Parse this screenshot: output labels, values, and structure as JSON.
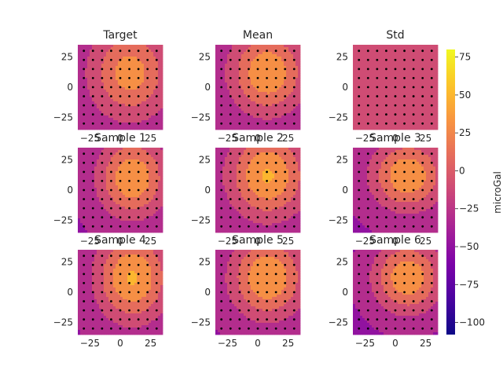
{
  "chart_data": {
    "type": "heatmap",
    "colormap": "plasma",
    "colorbar": {
      "label": "microGal",
      "range": [
        -108,
        80
      ],
      "ticks": [
        -100,
        -75,
        -50,
        -25,
        0,
        25,
        50,
        75
      ]
    },
    "x_ticks": [
      -25,
      0,
      25
    ],
    "y_ticks": [
      -25,
      0,
      25
    ],
    "xlim": [
      -35,
      35
    ],
    "ylim": [
      -35,
      35
    ],
    "contour_levels": [
      -100,
      -80,
      -60,
      -40,
      -20,
      0,
      20,
      40,
      60,
      80
    ],
    "station_grid": {
      "x": [
        -30,
        -22.5,
        -15,
        -7.5,
        0,
        7.5,
        15,
        22.5,
        30
      ],
      "y": [
        -30,
        -22.5,
        -15,
        -7.5,
        0,
        7.5,
        15,
        22.5,
        30
      ]
    },
    "panels": [
      {
        "title": "Target",
        "kind": "field",
        "x0": 8,
        "y0": 12,
        "amp": 65,
        "s": 30,
        "off": -35,
        "sx": 1.0,
        "sy": 1.15
      },
      {
        "title": "Mean",
        "kind": "field",
        "x0": 8,
        "y0": 12,
        "amp": 78,
        "s": 30,
        "off": -40,
        "sx": 1.0,
        "sy": 1.1
      },
      {
        "title": "Std",
        "kind": "flat",
        "value": -20
      },
      {
        "title": "Sample 1",
        "kind": "field",
        "x0": 10,
        "y0": 10,
        "amp": 80,
        "s": 29,
        "off": -42,
        "sx": 0.95,
        "sy": 1.1
      },
      {
        "title": "Sample 2",
        "kind": "field",
        "x0": 8,
        "y0": 12,
        "amp": 82,
        "s": 31,
        "off": -40,
        "sx": 1.0,
        "sy": 1.1
      },
      {
        "title": "Sample 3",
        "kind": "field",
        "x0": 10,
        "y0": 12,
        "amp": 80,
        "s": 28,
        "off": -42,
        "sx": 1.05,
        "sy": 1.0
      },
      {
        "title": "Sample 4",
        "kind": "field",
        "x0": 10,
        "y0": 12,
        "amp": 84,
        "s": 31,
        "off": -42,
        "sx": 0.95,
        "sy": 1.15
      },
      {
        "title": "Sample 5",
        "kind": "field",
        "x0": 8,
        "y0": 12,
        "amp": 82,
        "s": 30,
        "off": -42,
        "sx": 1.0,
        "sy": 1.1
      },
      {
        "title": "Sample 6",
        "kind": "field",
        "x0": 10,
        "y0": 12,
        "amp": 80,
        "s": 28,
        "off": -44,
        "sx": 1.0,
        "sy": 1.05
      }
    ]
  }
}
